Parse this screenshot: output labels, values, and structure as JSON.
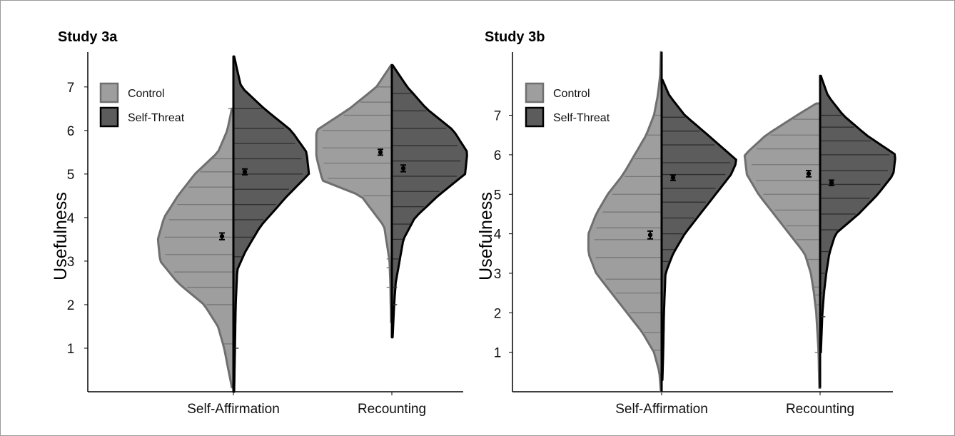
{
  "chart_data": [
    {
      "type": "violin",
      "title": "Study 3a",
      "xlabel": "",
      "ylabel": "Usefulness",
      "ylim": [
        0,
        7.8
      ],
      "yticks": [
        1,
        2,
        3,
        4,
        5,
        6,
        7
      ],
      "categories": [
        "Self-Affirmation",
        "Recounting"
      ],
      "legend": {
        "position": "top-left"
      },
      "series": [
        {
          "name": "Control",
          "color": "#9e9e9e",
          "stroke": "#6f6f6f",
          "side": "left",
          "groups": [
            {
              "category": "Self-Affirmation",
              "mean": 3.57,
              "se": 0.06,
              "range": [
                0.1,
                6.5
              ],
              "density": [
                [
                  0.1,
                  0.02
                ],
                [
                  1,
                  0.12
                ],
                [
                  1.5,
                  0.2
                ],
                [
                  2,
                  0.38
                ],
                [
                  2.5,
                  0.72
                ],
                [
                  3,
                  0.95
                ],
                [
                  3.5,
                  0.98
                ],
                [
                  4,
                  0.9
                ],
                [
                  4.5,
                  0.72
                ],
                [
                  5,
                  0.5
                ],
                [
                  5.5,
                  0.2
                ],
                [
                  6,
                  0.08
                ],
                [
                  6.5,
                  0.02
                ]
              ],
              "lines": [
                1.1,
                2,
                2.4,
                2.75,
                3.15,
                3.55,
                3.95,
                4.3,
                4.7,
                5.05,
                5.35,
                6.5
              ]
            },
            {
              "category": "Recounting",
              "mean": 5.5,
              "se": 0.05,
              "range": [
                1.6,
                7.5
              ],
              "density": [
                [
                  1.6,
                  0.01
                ],
                [
                  2.5,
                  0.02
                ],
                [
                  3,
                  0.03
                ],
                [
                  3.8,
                  0.1
                ],
                [
                  4.5,
                  0.4
                ],
                [
                  4.85,
                  0.9
                ],
                [
                  5.4,
                  0.98
                ],
                [
                  6,
                  0.98
                ],
                [
                  6.5,
                  0.55
                ],
                [
                  7,
                  0.2
                ],
                [
                  7.5,
                  0.01
                ]
              ],
              "lines": [
                2.4,
                2.85,
                3.05,
                4.5,
                4.9,
                5.25,
                5.6,
                6.0,
                6.35,
                6.65,
                7.0
              ]
            }
          ]
        },
        {
          "name": "Self-Threat",
          "color": "#5c5c5c",
          "stroke": "#000000",
          "side": "right",
          "groups": [
            {
              "category": "Self-Affirmation",
              "mean": 5.05,
              "se": 0.05,
              "range": [
                0,
                7.7
              ],
              "density": [
                [
                  0,
                  0.01
                ],
                [
                  1,
                  0.02
                ],
                [
                  2,
                  0.03
                ],
                [
                  2.8,
                  0.05
                ],
                [
                  3.2,
                  0.15
                ],
                [
                  3.8,
                  0.35
                ],
                [
                  4.5,
                  0.7
                ],
                [
                  5,
                  0.98
                ],
                [
                  5.5,
                  0.95
                ],
                [
                  6,
                  0.75
                ],
                [
                  6.5,
                  0.4
                ],
                [
                  7,
                  0.1
                ],
                [
                  7.7,
                  0.01
                ]
              ],
              "lines": [
                1.0,
                3.1,
                3.55,
                3.95,
                4.3,
                4.65,
                5.0,
                5.35,
                5.7,
                6.05,
                6.5
              ]
            },
            {
              "category": "Recounting",
              "mean": 5.13,
              "se": 0.06,
              "range": [
                1.25,
                7.5
              ],
              "density": [
                [
                  1.25,
                  0.01
                ],
                [
                  2,
                  0.03
                ],
                [
                  2.5,
                  0.05
                ],
                [
                  3,
                  0.1
                ],
                [
                  3.5,
                  0.15
                ],
                [
                  4,
                  0.3
                ],
                [
                  4.5,
                  0.6
                ],
                [
                  5,
                  0.95
                ],
                [
                  5.5,
                  0.98
                ],
                [
                  6,
                  0.8
                ],
                [
                  6.5,
                  0.45
                ],
                [
                  7,
                  0.2
                ],
                [
                  7.5,
                  0.01
                ]
              ],
              "lines": [
                2.0,
                2.4,
                3.05,
                3.5,
                3.85,
                4.25,
                4.6,
                4.95,
                5.3,
                5.65,
                6.05,
                6.45,
                6.85
              ]
            }
          ]
        }
      ]
    },
    {
      "type": "violin",
      "title": "Study 3b",
      "xlabel": "",
      "ylabel": "Usefulness",
      "ylim": [
        0,
        8.6
      ],
      "yticks": [
        1,
        2,
        3,
        4,
        5,
        6,
        7
      ],
      "categories": [
        "Self-Affirmation",
        "Recounting"
      ],
      "legend": {
        "position": "top-left"
      },
      "series": [
        {
          "name": "Control",
          "color": "#9e9e9e",
          "stroke": "#6f6f6f",
          "side": "left",
          "groups": [
            {
              "category": "Self-Affirmation",
              "mean": 3.97,
              "se": 0.08,
              "range": [
                0,
                8.6
              ],
              "density": [
                [
                  0,
                  0.01
                ],
                [
                  0.5,
                  0.03
                ],
                [
                  1,
                  0.1
                ],
                [
                  1.5,
                  0.25
                ],
                [
                  2,
                  0.45
                ],
                [
                  2.5,
                  0.65
                ],
                [
                  3,
                  0.85
                ],
                [
                  3.5,
                  0.95
                ],
                [
                  4,
                  0.95
                ],
                [
                  4.5,
                  0.85
                ],
                [
                  5,
                  0.7
                ],
                [
                  5.5,
                  0.5
                ],
                [
                  6,
                  0.35
                ],
                [
                  6.5,
                  0.2
                ],
                [
                  7,
                  0.1
                ],
                [
                  7.5,
                  0.05
                ],
                [
                  8,
                  0.02
                ],
                [
                  8.6,
                  0.01
                ]
              ],
              "lines": [
                1.05,
                1.5,
                2.0,
                2.5,
                2.85,
                3.4,
                3.85,
                4.15,
                4.55,
                5.0,
                5.45,
                5.9,
                6.5,
                7.0
              ]
            },
            {
              "category": "Recounting",
              "mean": 5.52,
              "se": 0.06,
              "range": [
                0.1,
                7.3
              ],
              "density": [
                [
                  0.1,
                  0.01
                ],
                [
                  1,
                  0.02
                ],
                [
                  2,
                  0.05
                ],
                [
                  2.5,
                  0.08
                ],
                [
                  3,
                  0.12
                ],
                [
                  3.5,
                  0.2
                ],
                [
                  4,
                  0.4
                ],
                [
                  4.5,
                  0.6
                ],
                [
                  5,
                  0.8
                ],
                [
                  5.5,
                  0.95
                ],
                [
                  6,
                  0.98
                ],
                [
                  6.5,
                  0.7
                ],
                [
                  7,
                  0.3
                ],
                [
                  7.3,
                  0.05
                ]
              ],
              "lines": [
                1.0,
                2.2,
                2.45,
                2.65,
                3.35,
                3.85,
                4.2,
                4.6,
                5.0,
                5.35,
                5.75,
                6.15,
                6.5,
                6.9
              ]
            }
          ]
        },
        {
          "name": "Self-Threat",
          "color": "#5c5c5c",
          "stroke": "#000000",
          "side": "right",
          "groups": [
            {
              "category": "Self-Affirmation",
              "mean": 5.42,
              "se": 0.05,
              "range": [
                0.3,
                7.9
              ],
              "density": [
                [
                  0.3,
                  0.01
                ],
                [
                  1,
                  0.02
                ],
                [
                  2,
                  0.03
                ],
                [
                  3,
                  0.05
                ],
                [
                  3.5,
                  0.15
                ],
                [
                  4,
                  0.3
                ],
                [
                  4.5,
                  0.5
                ],
                [
                  5,
                  0.7
                ],
                [
                  5.5,
                  0.9
                ],
                [
                  5.85,
                  0.98
                ],
                [
                  6.5,
                  0.6
                ],
                [
                  7,
                  0.3
                ],
                [
                  7.5,
                  0.1
                ],
                [
                  7.9,
                  0.01
                ]
              ],
              "lines": [
                3.3,
                3.6,
                4.0,
                4.4,
                4.8,
                5.15,
                5.5,
                5.8,
                6.25,
                6.6,
                6.95
              ]
            },
            {
              "category": "Recounting",
              "mean": 5.29,
              "se": 0.05,
              "range": [
                1,
                8.0
              ],
              "density": [
                [
                  1,
                  0.01
                ],
                [
                  2,
                  0.03
                ],
                [
                  2.5,
                  0.05
                ],
                [
                  3,
                  0.08
                ],
                [
                  3.5,
                  0.12
                ],
                [
                  4,
                  0.2
                ],
                [
                  4.5,
                  0.5
                ],
                [
                  5,
                  0.75
                ],
                [
                  5.5,
                  0.95
                ],
                [
                  6,
                  0.98
                ],
                [
                  6.5,
                  0.6
                ],
                [
                  7,
                  0.3
                ],
                [
                  7.5,
                  0.1
                ],
                [
                  8,
                  0.01
                ]
              ],
              "lines": [
                1.9,
                2.5,
                3.0,
                3.55,
                4.1,
                4.5,
                4.9,
                5.25,
                5.6,
                6.0,
                6.35,
                6.7,
                7.0
              ]
            }
          ]
        }
      ]
    }
  ]
}
